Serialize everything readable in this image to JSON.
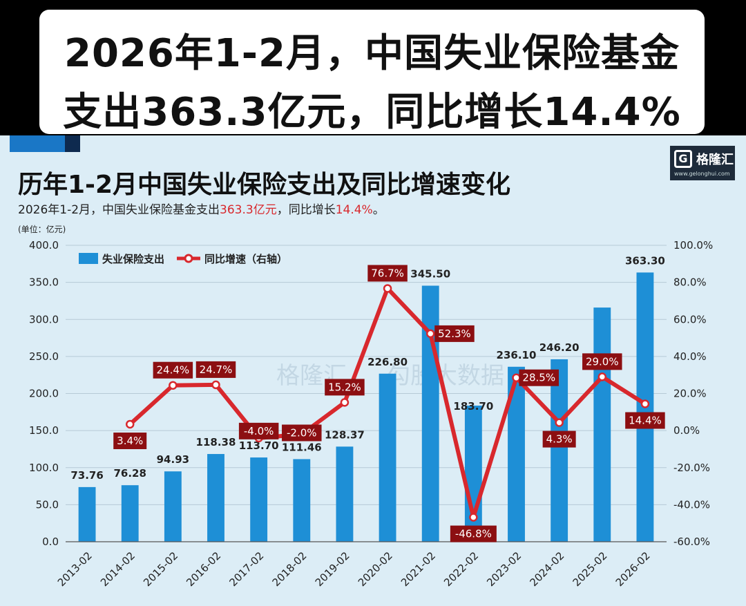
{
  "banner": {
    "line1": "2026年1-2月，中国失业保险基金",
    "line2": "支出363.3亿元，同比增长14.4%"
  },
  "logo": {
    "name": "格隆汇",
    "url": "www.gelonghui.com"
  },
  "watermark": {
    "text1": "格隆汇",
    "text2": "勾股大数据"
  },
  "chart_data": {
    "type": "bar",
    "title": "历年1-2月中国失业保险支出及同比增速变化",
    "subtitle_prefix": "2026年1-2月，中国失业保险基金支出",
    "subtitle_value": "363.3亿元",
    "subtitle_mid": "，同比增长",
    "subtitle_growth": "14.4%",
    "subtitle_suffix": "。",
    "unit": "(单位：亿元)",
    "categories": [
      "2013-02",
      "2014-02",
      "2015-02",
      "2016-02",
      "2017-02",
      "2018-02",
      "2019-02",
      "2020-02",
      "2021-02",
      "2022-02",
      "2023-02",
      "2024-02",
      "2025-02",
      "2026-02"
    ],
    "series": [
      {
        "name": "失业保险支出",
        "type": "bar",
        "axis": "left",
        "values": [
          73.76,
          76.28,
          94.93,
          118.38,
          113.7,
          111.46,
          128.37,
          226.8,
          345.5,
          183.7,
          236.1,
          246.2,
          316.0,
          363.3
        ],
        "labels": [
          "73.76",
          "76.28",
          "94.93",
          "118.38",
          "113.70",
          "111.46",
          "128.37",
          "226.80",
          "345.50",
          "183.70",
          "236.10",
          "246.20",
          "",
          "363.30"
        ]
      },
      {
        "name": "同比增速（右轴）",
        "type": "line",
        "axis": "right",
        "values": [
          null,
          3.4,
          24.4,
          24.7,
          -4.0,
          -2.0,
          15.2,
          76.7,
          52.3,
          -46.8,
          28.5,
          4.3,
          29.0,
          14.4
        ],
        "labels": [
          "",
          "3.4%",
          "24.4%",
          "24.7%",
          "-4.0%",
          "-2.0%",
          "15.2%",
          "76.7%",
          "52.3%",
          "-46.8%",
          "28.5%",
          "4.3%",
          "29.0%",
          "14.4%"
        ]
      }
    ],
    "ylim_left": [
      0,
      400
    ],
    "yticks_left": [
      "0.0",
      "50.0",
      "100.0",
      "150.0",
      "200.0",
      "250.0",
      "300.0",
      "350.0",
      "400.0"
    ],
    "ylim_right": [
      -60,
      100
    ],
    "yticks_right": [
      "-60.0%",
      "-40.0%",
      "-20.0%",
      "0.0%",
      "20.0%",
      "40.0%",
      "60.0%",
      "80.0%",
      "100.0%"
    ],
    "grid": true,
    "legend": "top-left",
    "colors": {
      "bar": "#1e8fd6",
      "line": "#d8282d",
      "label_box": "#8c0f12",
      "grid": "#b6cad6"
    }
  }
}
